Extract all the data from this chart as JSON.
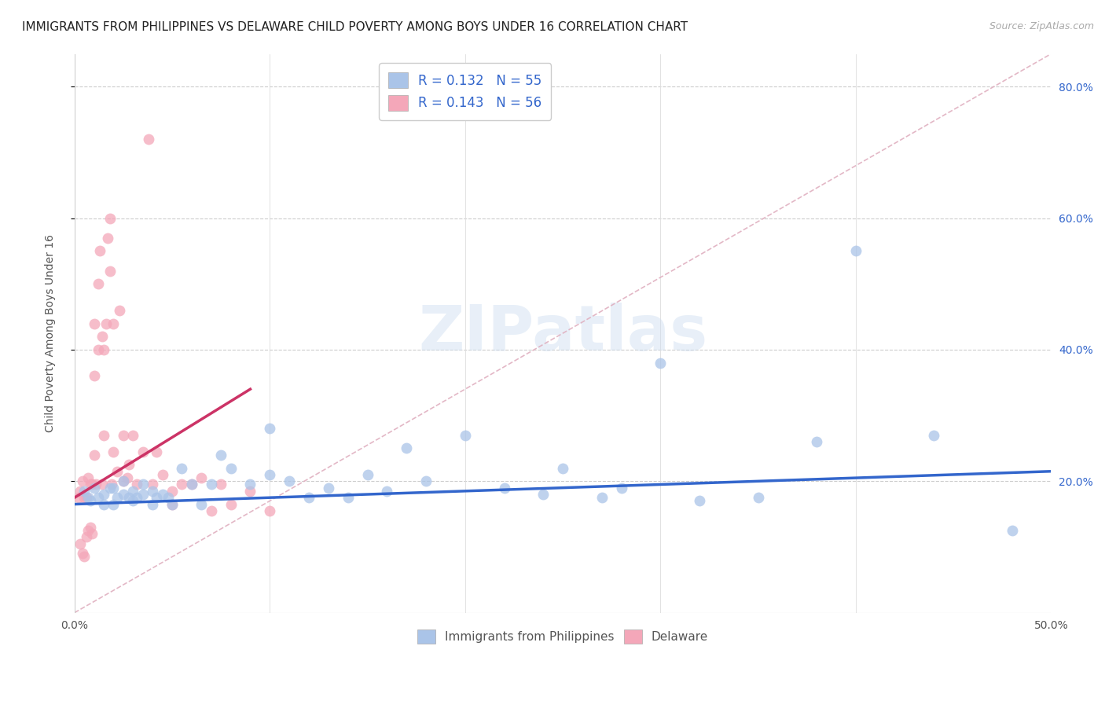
{
  "title": "IMMIGRANTS FROM PHILIPPINES VS DELAWARE CHILD POVERTY AMONG BOYS UNDER 16 CORRELATION CHART",
  "source": "Source: ZipAtlas.com",
  "ylabel": "Child Poverty Among Boys Under 16",
  "xlim": [
    0.0,
    0.5
  ],
  "ylim": [
    0.0,
    0.85
  ],
  "xtick_positions": [
    0.0,
    0.1,
    0.2,
    0.3,
    0.4,
    0.5
  ],
  "xtick_labels": [
    "0.0%",
    "",
    "",
    "",
    "",
    "50.0%"
  ],
  "ytick_positions": [
    0.2,
    0.4,
    0.6,
    0.8
  ],
  "ytick_labels_right": [
    "20.0%",
    "40.0%",
    "60.0%",
    "80.0%"
  ],
  "legend1_label": "R = 0.132   N = 55",
  "legend2_label": "R = 0.143   N = 56",
  "legend_label_bottom1": "Immigrants from Philippines",
  "legend_label_bottom2": "Delaware",
  "blue_color": "#aac4e8",
  "pink_color": "#f4a7b9",
  "blue_line_color": "#3366cc",
  "pink_line_color": "#cc3366",
  "diag_line_color": "#e0b0c0",
  "watermark": "ZIPatlas",
  "title_fontsize": 11,
  "axis_label_fontsize": 10,
  "tick_fontsize": 10,
  "blue_points_x": [
    0.005,
    0.007,
    0.008,
    0.01,
    0.012,
    0.015,
    0.015,
    0.018,
    0.02,
    0.02,
    0.022,
    0.025,
    0.025,
    0.028,
    0.03,
    0.03,
    0.032,
    0.035,
    0.035,
    0.04,
    0.04,
    0.042,
    0.045,
    0.048,
    0.05,
    0.055,
    0.06,
    0.065,
    0.07,
    0.075,
    0.08,
    0.09,
    0.1,
    0.1,
    0.11,
    0.12,
    0.13,
    0.14,
    0.15,
    0.16,
    0.17,
    0.18,
    0.2,
    0.22,
    0.24,
    0.25,
    0.27,
    0.28,
    0.3,
    0.32,
    0.35,
    0.38,
    0.4,
    0.44,
    0.48
  ],
  "blue_points_y": [
    0.185,
    0.175,
    0.17,
    0.19,
    0.175,
    0.18,
    0.165,
    0.19,
    0.165,
    0.19,
    0.175,
    0.18,
    0.2,
    0.175,
    0.17,
    0.185,
    0.175,
    0.18,
    0.195,
    0.165,
    0.185,
    0.175,
    0.18,
    0.175,
    0.165,
    0.22,
    0.195,
    0.165,
    0.195,
    0.24,
    0.22,
    0.195,
    0.21,
    0.28,
    0.2,
    0.175,
    0.19,
    0.175,
    0.21,
    0.185,
    0.25,
    0.2,
    0.27,
    0.19,
    0.18,
    0.22,
    0.175,
    0.19,
    0.38,
    0.17,
    0.175,
    0.26,
    0.55,
    0.27,
    0.125
  ],
  "pink_points_x": [
    0.002,
    0.003,
    0.003,
    0.004,
    0.004,
    0.005,
    0.005,
    0.006,
    0.006,
    0.007,
    0.007,
    0.008,
    0.008,
    0.009,
    0.009,
    0.01,
    0.01,
    0.01,
    0.011,
    0.012,
    0.012,
    0.013,
    0.014,
    0.014,
    0.015,
    0.015,
    0.016,
    0.017,
    0.018,
    0.018,
    0.019,
    0.02,
    0.02,
    0.022,
    0.023,
    0.025,
    0.025,
    0.027,
    0.028,
    0.03,
    0.032,
    0.035,
    0.038,
    0.04,
    0.042,
    0.045,
    0.05,
    0.05,
    0.055,
    0.06,
    0.065,
    0.07,
    0.075,
    0.08,
    0.09,
    0.1
  ],
  "pink_points_y": [
    0.175,
    0.105,
    0.185,
    0.2,
    0.09,
    0.175,
    0.085,
    0.175,
    0.115,
    0.205,
    0.125,
    0.195,
    0.13,
    0.195,
    0.12,
    0.24,
    0.36,
    0.44,
    0.195,
    0.4,
    0.5,
    0.55,
    0.195,
    0.42,
    0.4,
    0.27,
    0.44,
    0.57,
    0.6,
    0.52,
    0.195,
    0.245,
    0.44,
    0.215,
    0.46,
    0.2,
    0.27,
    0.205,
    0.225,
    0.27,
    0.195,
    0.245,
    0.72,
    0.195,
    0.245,
    0.21,
    0.185,
    0.165,
    0.195,
    0.195,
    0.205,
    0.155,
    0.195,
    0.165,
    0.185,
    0.155
  ],
  "pink_trend_x": [
    0.0,
    0.09
  ],
  "pink_trend_y": [
    0.175,
    0.34
  ],
  "blue_trend_x": [
    0.0,
    0.5
  ],
  "blue_trend_y": [
    0.165,
    0.215
  ]
}
